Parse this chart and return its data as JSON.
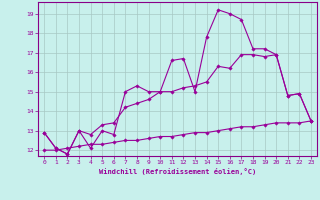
{
  "xlabel": "Windchill (Refroidissement éolien,°C)",
  "background_color": "#c8f0ec",
  "grid_color": "#a8c8c4",
  "line_color": "#990099",
  "spine_color": "#880088",
  "xlim": [
    -0.5,
    23.5
  ],
  "ylim": [
    11.7,
    19.6
  ],
  "xticks": [
    0,
    1,
    2,
    3,
    4,
    5,
    6,
    7,
    8,
    9,
    10,
    11,
    12,
    13,
    14,
    15,
    16,
    17,
    18,
    19,
    20,
    21,
    22,
    23
  ],
  "yticks": [
    12,
    13,
    14,
    15,
    16,
    17,
    18,
    19
  ],
  "line1_x": [
    0,
    1,
    2,
    3,
    4,
    5,
    6,
    7,
    8,
    9,
    10,
    11,
    12,
    13,
    14,
    15,
    16,
    17,
    18,
    19,
    20,
    21,
    22,
    23
  ],
  "line1_y": [
    12.9,
    12.1,
    11.8,
    13.0,
    12.1,
    13.0,
    12.8,
    15.0,
    15.3,
    15.0,
    15.0,
    16.6,
    16.7,
    15.0,
    17.8,
    19.2,
    19.0,
    18.7,
    17.2,
    17.2,
    16.9,
    14.8,
    14.9,
    13.5
  ],
  "line2_x": [
    0,
    1,
    2,
    3,
    4,
    5,
    6,
    7,
    8,
    9,
    10,
    11,
    12,
    13,
    14,
    15,
    16,
    17,
    18,
    19,
    20,
    21,
    22,
    23
  ],
  "line2_y": [
    12.9,
    12.1,
    11.8,
    13.0,
    12.8,
    13.3,
    13.4,
    14.2,
    14.4,
    14.6,
    15.0,
    15.0,
    15.2,
    15.3,
    15.5,
    16.3,
    16.2,
    16.9,
    16.9,
    16.8,
    16.9,
    14.8,
    14.9,
    13.5
  ],
  "line3_x": [
    0,
    1,
    2,
    3,
    4,
    5,
    6,
    7,
    8,
    9,
    10,
    11,
    12,
    13,
    14,
    15,
    16,
    17,
    18,
    19,
    20,
    21,
    22,
    23
  ],
  "line3_y": [
    12.0,
    12.0,
    12.1,
    12.2,
    12.3,
    12.3,
    12.4,
    12.5,
    12.5,
    12.6,
    12.7,
    12.7,
    12.8,
    12.9,
    12.9,
    13.0,
    13.1,
    13.2,
    13.2,
    13.3,
    13.4,
    13.4,
    13.4,
    13.5
  ]
}
